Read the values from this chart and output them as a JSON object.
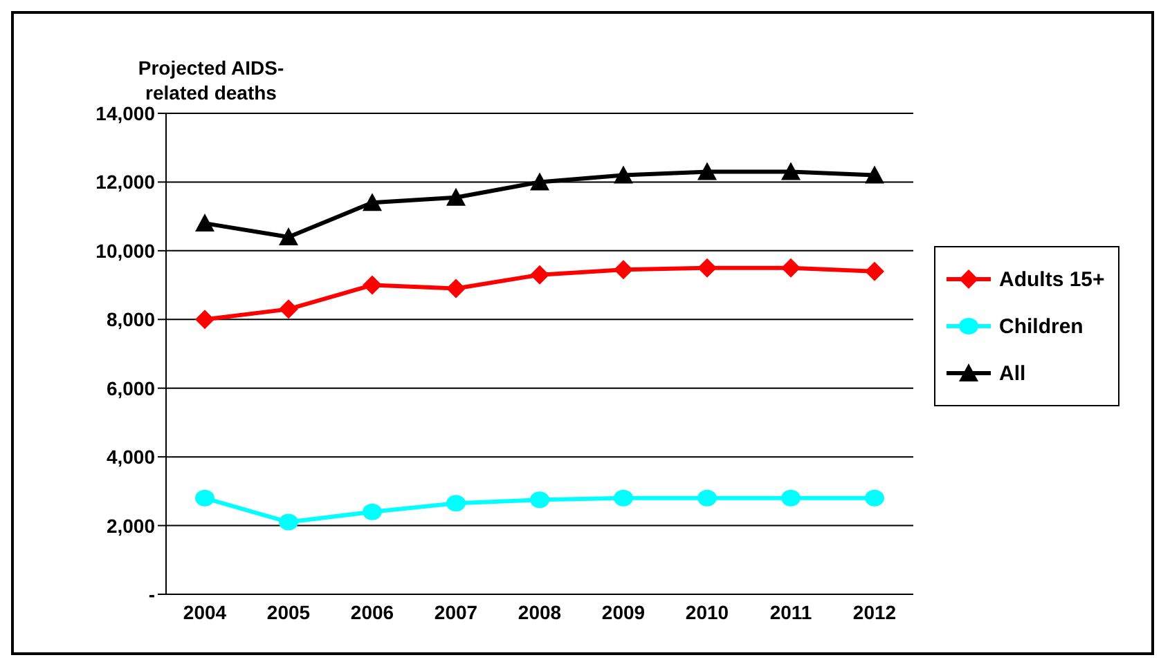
{
  "chart_data": {
    "type": "line",
    "ylabel": "Projected AIDS-related deaths",
    "categories": [
      "2004",
      "2005",
      "2006",
      "2007",
      "2008",
      "2009",
      "2010",
      "2011",
      "2012"
    ],
    "series": [
      {
        "name": "Adults 15+",
        "color": "#ff0000",
        "marker": "diamond",
        "values": [
          8000,
          8300,
          9000,
          8900,
          9300,
          9450,
          9500,
          9500,
          9400
        ]
      },
      {
        "name": "Children",
        "color": "#00ffff",
        "marker": "circle",
        "values": [
          2800,
          2100,
          2400,
          2650,
          2750,
          2800,
          2800,
          2800,
          2800
        ]
      },
      {
        "name": "All",
        "color": "#000000",
        "marker": "triangle",
        "values": [
          10800,
          10400,
          11400,
          11550,
          12000,
          12200,
          12300,
          12300,
          12200
        ]
      }
    ],
    "ylim": [
      0,
      14000
    ],
    "yticks": [
      {
        "value": 0,
        "label": "-"
      },
      {
        "value": 2000,
        "label": "2,000"
      },
      {
        "value": 4000,
        "label": "4,000"
      },
      {
        "value": 6000,
        "label": "6,000"
      },
      {
        "value": 8000,
        "label": "8,000"
      },
      {
        "value": 10000,
        "label": "10,000"
      },
      {
        "value": 12000,
        "label": "12,000"
      },
      {
        "value": 14000,
        "label": "14,000"
      }
    ],
    "grid": "y",
    "legend": "right"
  }
}
